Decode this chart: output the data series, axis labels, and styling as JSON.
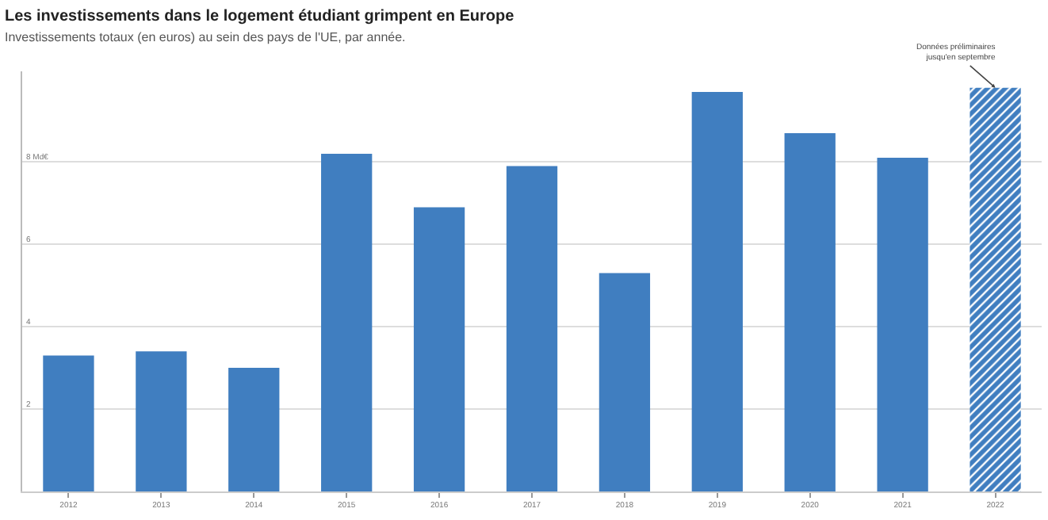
{
  "chart_data": {
    "type": "bar",
    "title": "Les investissements dans le logement étudiant grimpent en Europe",
    "subtitle": "Investissements totaux (en euros) au sein des pays de l'UE, par année.",
    "categories": [
      "2012",
      "2013",
      "2014",
      "2015",
      "2016",
      "2017",
      "2018",
      "2019",
      "2020",
      "2021",
      "2022"
    ],
    "values": [
      3.3,
      3.4,
      3.0,
      8.2,
      6.9,
      7.9,
      5.3,
      9.7,
      8.7,
      8.1,
      9.8
    ],
    "color": "#407ec0",
    "ylim": [
      0,
      10.2
    ],
    "yticks": [
      2,
      4,
      6,
      {
        "value": 8,
        "label": "8 Md€"
      }
    ],
    "grid": "y",
    "annotations": [
      {
        "text": "Données préliminaires\njusqu'en septembre",
        "x": "2022",
        "y": 9.8
      }
    ]
  }
}
